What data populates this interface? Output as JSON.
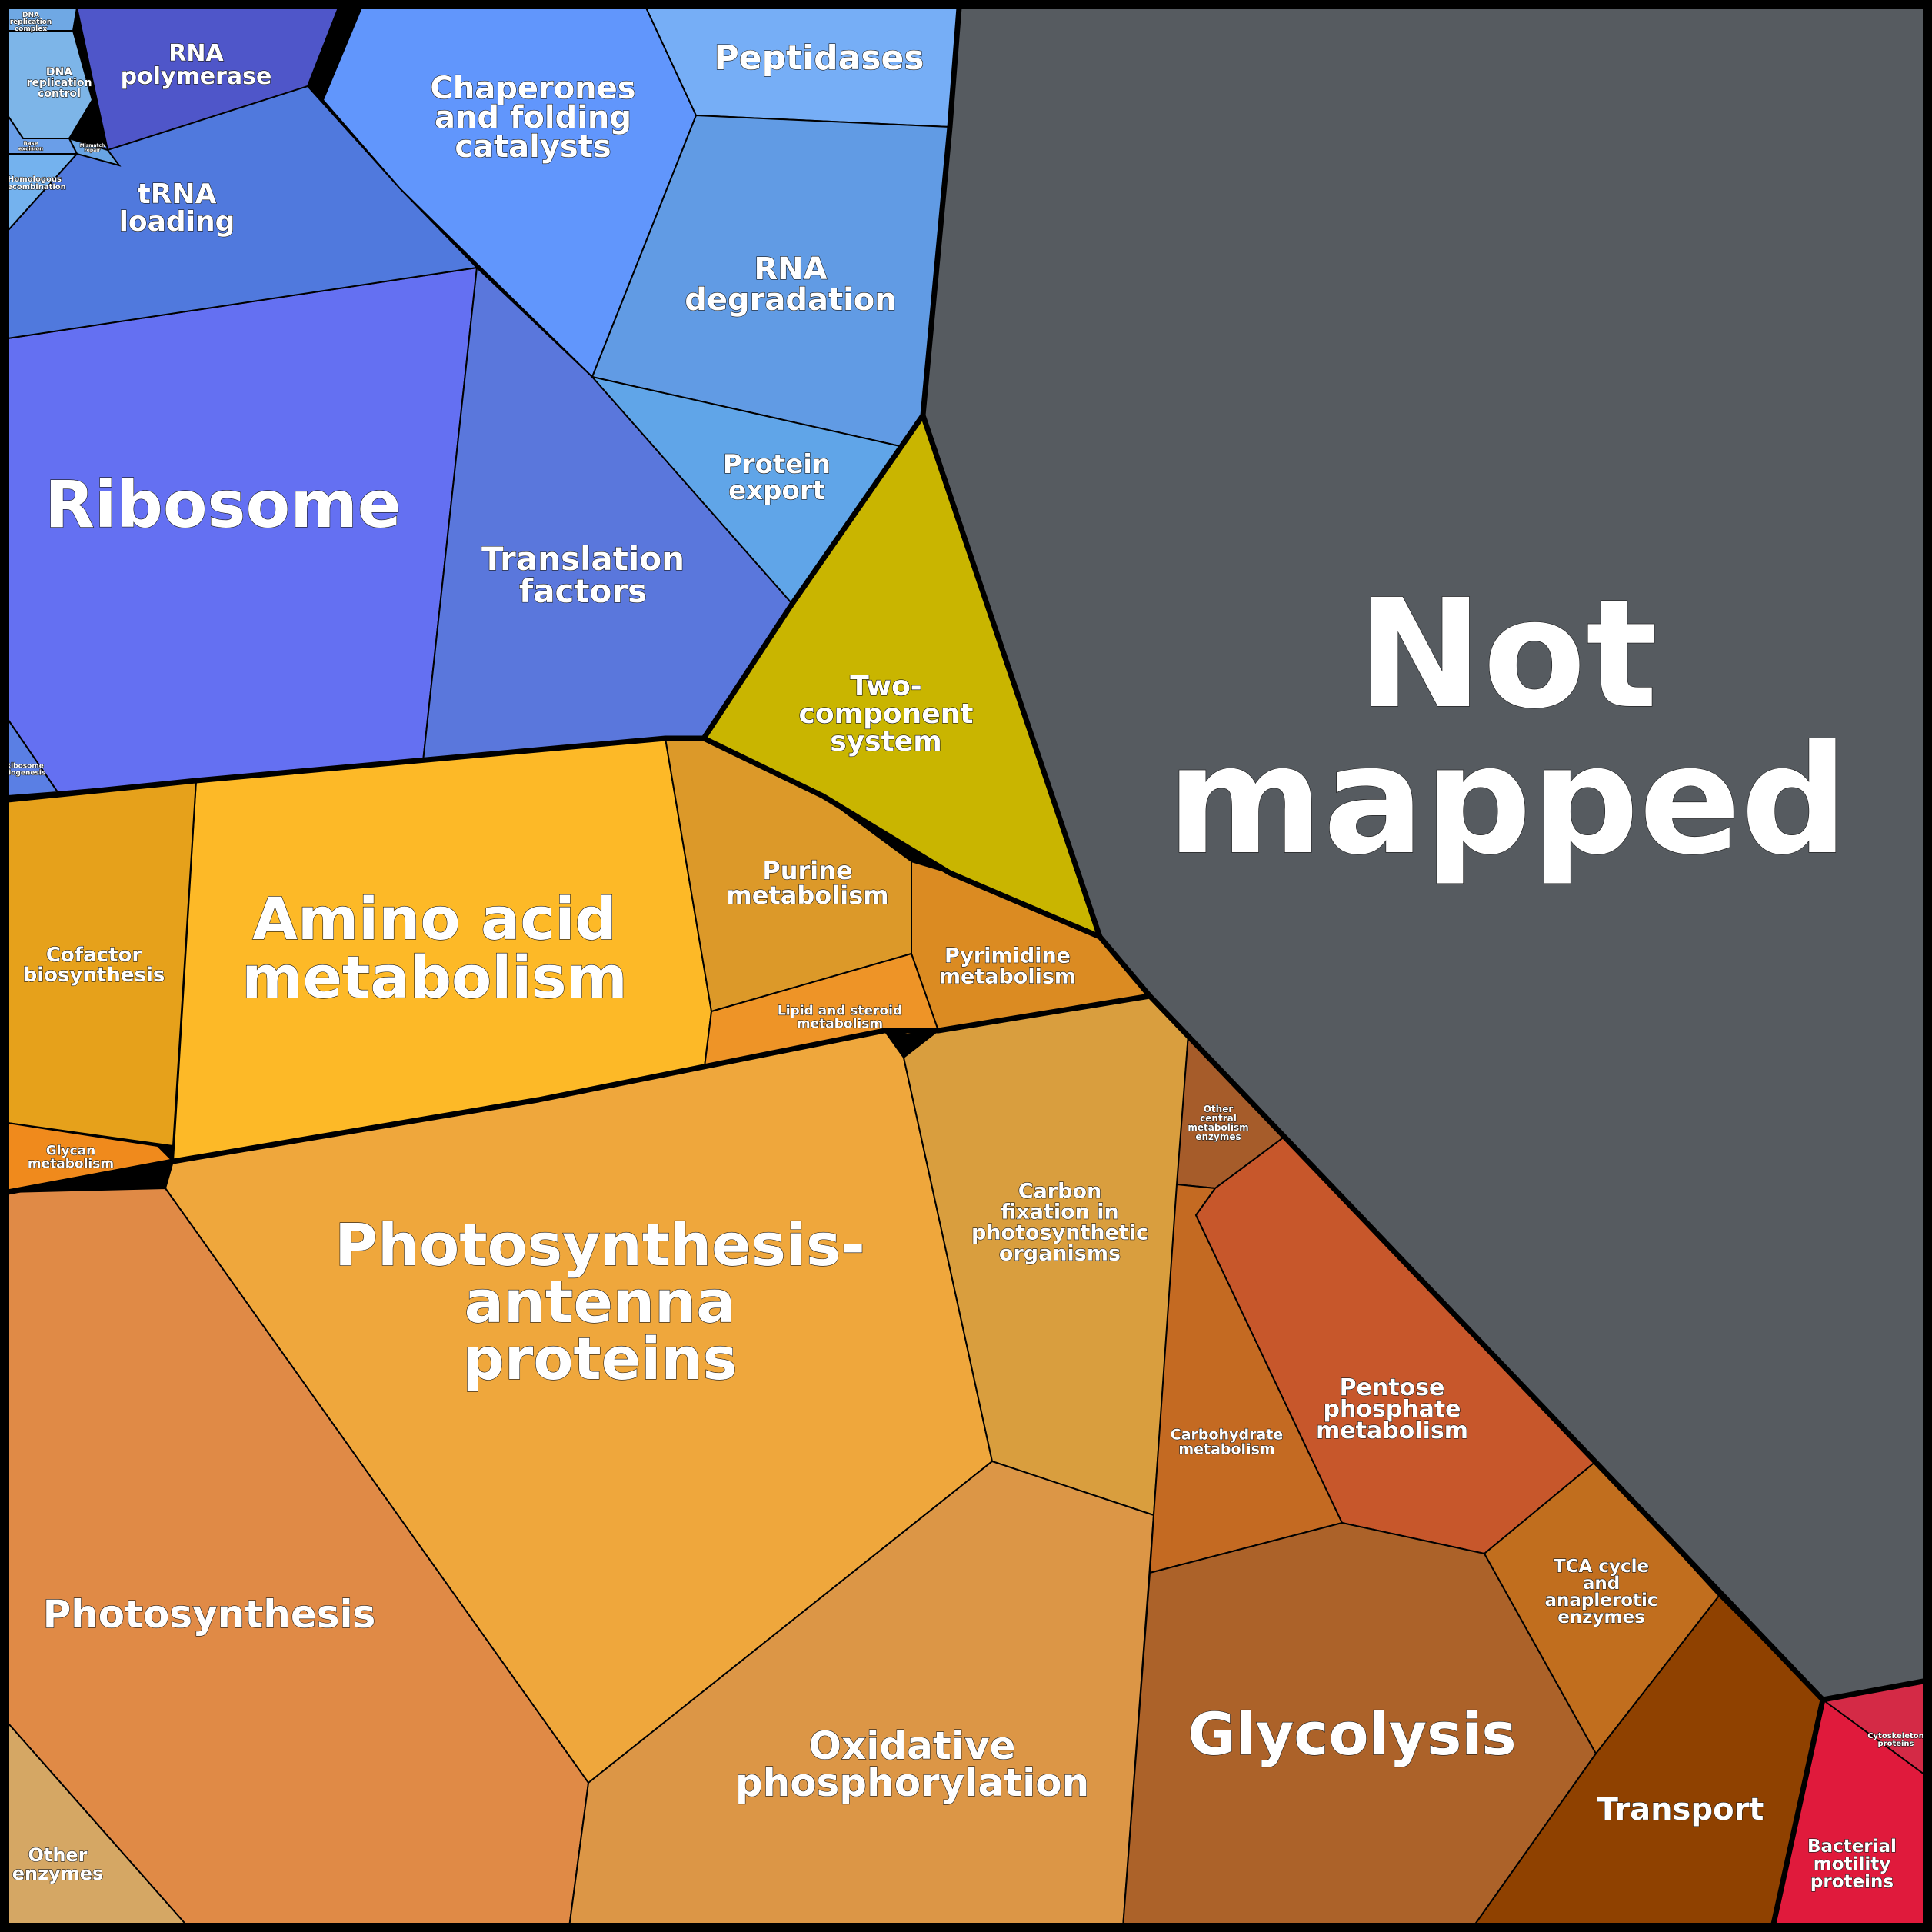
{
  "chart_data": {
    "type": "voronoi_treemap",
    "title": "",
    "cells": [
      {
        "id": "not-mapped",
        "lines": [
          "Not",
          "mapped"
        ],
        "color": "#565b60"
      },
      {
        "id": "ribosome",
        "lines": [
          "Ribosome"
        ],
        "color": "#6470f2"
      },
      {
        "id": "translation-factors",
        "lines": [
          "Translation",
          "factors"
        ],
        "color": "#5a77dc"
      },
      {
        "id": "trna-loading",
        "lines": [
          "tRNA",
          "loading"
        ],
        "color": "#5079dd"
      },
      {
        "id": "rna-polymerase",
        "lines": [
          "RNA",
          "polymerase"
        ],
        "color": "#4f56c9"
      },
      {
        "id": "chaperones",
        "lines": [
          "Chaperones",
          "and folding",
          "catalysts"
        ],
        "color": "#6196fc"
      },
      {
        "id": "peptidases",
        "lines": [
          "Peptidases"
        ],
        "color": "#76aef6"
      },
      {
        "id": "rna-degradation",
        "lines": [
          "RNA",
          "degradation"
        ],
        "color": "#619be4"
      },
      {
        "id": "protein-export",
        "lines": [
          "Protein",
          "export"
        ],
        "color": "#60a5e8"
      },
      {
        "id": "dna-replication-control",
        "lines": [
          "DNA",
          "replication",
          "control"
        ],
        "color": "#7db5e8"
      },
      {
        "id": "dna-replication-complex",
        "lines": [
          "DNA",
          "replication",
          "complex"
        ],
        "color": "#6fa8e4"
      },
      {
        "id": "homologous-recombination",
        "lines": [
          "Homologous",
          "recombination"
        ],
        "color": "#74b2ee"
      },
      {
        "id": "mismatch-repair",
        "lines": [
          "Mismatch",
          "repair"
        ],
        "color": "#68a4e4"
      },
      {
        "id": "base-excision",
        "lines": [
          "Base",
          "excision"
        ],
        "color": "#6a9ee8"
      },
      {
        "id": "ribosome-biogenesis",
        "lines": [
          "Ribosome",
          "biogenesis"
        ],
        "color": "#5a7fe4"
      },
      {
        "id": "two-component-system",
        "lines": [
          "Two-",
          "component",
          "system"
        ],
        "color": "#c9b500"
      },
      {
        "id": "amino-acid-metabolism",
        "lines": [
          "Amino acid",
          "metabolism"
        ],
        "color": "#fdb927"
      },
      {
        "id": "cofactor-biosynthesis",
        "lines": [
          "Cofactor",
          "biosynthesis"
        ],
        "color": "#e6a11b"
      },
      {
        "id": "glycan-metabolism",
        "lines": [
          "Glycan",
          "metabolism"
        ],
        "color": "#f08a1c"
      },
      {
        "id": "purine-metabolism",
        "lines": [
          "Purine",
          "metabolism"
        ],
        "color": "#dc9929"
      },
      {
        "id": "pyrimidine-metabolism",
        "lines": [
          "Pyrimidine",
          "metabolism"
        ],
        "color": "#db8b22"
      },
      {
        "id": "lipid-steroid-metabolism",
        "lines": [
          "Lipid and steroid",
          "metabolism"
        ],
        "color": "#ee9427"
      },
      {
        "id": "photosynthesis-antenna",
        "lines": [
          "Photosynthesis-",
          "antenna",
          "proteins"
        ],
        "color": "#efa73c"
      },
      {
        "id": "carbon-fixation",
        "lines": [
          "Carbon",
          "fixation in",
          "photosynthetic",
          "organisms"
        ],
        "color": "#d99e3e"
      },
      {
        "id": "photosynthesis",
        "lines": [
          "Photosynthesis"
        ],
        "color": "#e08a46"
      },
      {
        "id": "other-enzymes",
        "lines": [
          "Other",
          "enzymes"
        ],
        "color": "#d5a764"
      },
      {
        "id": "oxidative-phosphorylation",
        "lines": [
          "Oxidative",
          "phosphorylation"
        ],
        "color": "#dc9646"
      },
      {
        "id": "other-central-metabolism",
        "lines": [
          "Other",
          "central",
          "metabolism",
          "enzymes"
        ],
        "color": "#a65c2a"
      },
      {
        "id": "carbohydrate-metabolism",
        "lines": [
          "Carbohydrate",
          "metabolism"
        ],
        "color": "#c46a22"
      },
      {
        "id": "pentose-phosphate",
        "lines": [
          "Pentose",
          "phosphate",
          "metabolism"
        ],
        "color": "#c7572b"
      },
      {
        "id": "glycolysis",
        "lines": [
          "Glycolysis"
        ],
        "color": "#ac6229"
      },
      {
        "id": "tca-cycle",
        "lines": [
          "TCA cycle",
          "and",
          "anaplerotic",
          "enzymes"
        ],
        "color": "#c16e1e"
      },
      {
        "id": "transport",
        "lines": [
          "Transport"
        ],
        "color": "#8f4100"
      },
      {
        "id": "bacterial-motility",
        "lines": [
          "Bacterial",
          "motility",
          "proteins"
        ],
        "color": "#e01a3c"
      },
      {
        "id": "cytoskeleton",
        "lines": [
          "Cytoskeleton",
          "proteins"
        ],
        "color": "#d42a46"
      }
    ]
  }
}
